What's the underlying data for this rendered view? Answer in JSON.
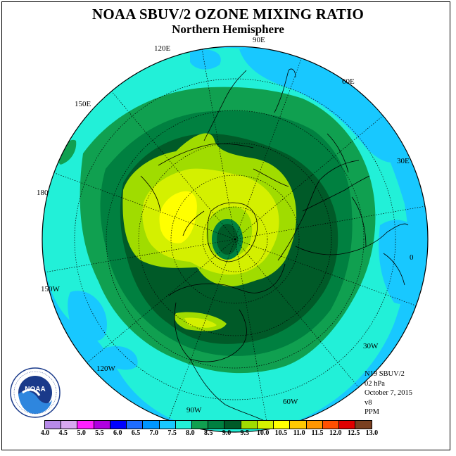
{
  "title": "NOAA SBUV/2 OZONE MIXING RATIO",
  "subtitle": "Northern Hemisphere",
  "longitude_labels": {
    "lon_90E": "90E",
    "lon_60E": "60E",
    "lon_30E": "30E",
    "lon_0": "0",
    "lon_30W": "30W",
    "lon_60W": "60W",
    "lon_90W": "90W",
    "lon_120W": "120W",
    "lon_150W": "150W",
    "lon_180": "180",
    "lon_150E": "150E",
    "lon_120E": "120E"
  },
  "info": {
    "satellite": "N19 SBUV/2",
    "level": "02 hPa",
    "date": "October 7, 2015",
    "version": "v8",
    "units": "PPM"
  },
  "logo": {
    "text": "NOAA",
    "ring_text": "NATIONAL OCEANIC AND ATMOSPHERIC ADMINISTRATION · U.S. DEPARTMENT OF COMMERCE"
  },
  "colorbar": {
    "ticks": [
      "4.0",
      "4.5",
      "5.0",
      "5.5",
      "6.0",
      "6.5",
      "7.0",
      "7.5",
      "8.0",
      "8.5",
      "9.0",
      "9.5",
      "10.0",
      "10.5",
      "11.0",
      "11.5",
      "12.0",
      "12.5",
      "13.0"
    ],
    "colors": [
      "#b78ae8",
      "#d8a8f0",
      "#ff20ff",
      "#b000e0",
      "#0000ff",
      "#1e6cff",
      "#0096ff",
      "#18c8ff",
      "#22f0d8",
      "#10a050",
      "#008040",
      "#005a28",
      "#a0dc00",
      "#d4f000",
      "#ffff00",
      "#ffc800",
      "#ff9600",
      "#ff5000",
      "#e00000",
      "#7a4020"
    ]
  },
  "map_field": {
    "level_colors": {
      "7.0": "#18c8ff",
      "7.5": "#22f0d8",
      "8.0": "#10a050",
      "8.5": "#008040",
      "9.0": "#005a28",
      "9.5": "#a0dc00",
      "10.0": "#d4f000",
      "10.5": "#ffff00"
    }
  }
}
